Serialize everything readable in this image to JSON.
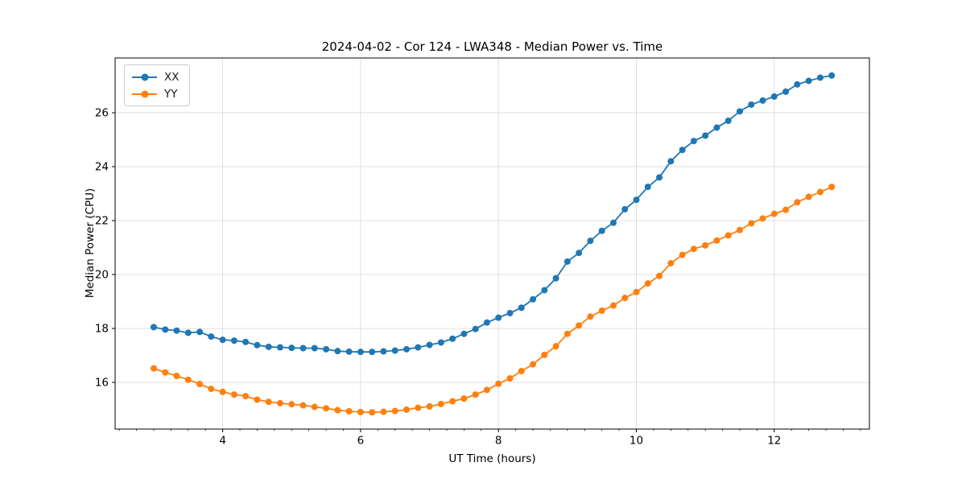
{
  "figure": {
    "background": "#ffffff",
    "text_color": "#000000",
    "grid_color": "#dcdcdc",
    "spine_color": "#000000"
  },
  "chart_data": {
    "type": "line",
    "title": "2024-04-02 - Cor 124 - LWA348 - Median Power vs. Time",
    "xlabel": "UT Time (hours)",
    "ylabel": "Median Power (CPU)",
    "xlim": [
      2.44,
      13.38
    ],
    "ylim": [
      14.27,
      28.03
    ],
    "xticks": [
      4,
      6,
      8,
      10,
      12
    ],
    "yticks": [
      16,
      18,
      20,
      22,
      24,
      26
    ],
    "minor_xtick_step": 0.25,
    "grid": true,
    "legend_position": "upper left",
    "marker": "circle",
    "x": [
      3.0,
      3.167,
      3.333,
      3.5,
      3.667,
      3.833,
      4.0,
      4.167,
      4.333,
      4.5,
      4.667,
      4.833,
      5.0,
      5.167,
      5.333,
      5.5,
      5.667,
      5.833,
      6.0,
      6.167,
      6.333,
      6.5,
      6.667,
      6.833,
      7.0,
      7.167,
      7.333,
      7.5,
      7.667,
      7.833,
      8.0,
      8.167,
      8.333,
      8.5,
      8.667,
      8.833,
      9.0,
      9.167,
      9.333,
      9.5,
      9.667,
      9.833,
      10.0,
      10.167,
      10.333,
      10.5,
      10.667,
      10.833,
      11.0,
      11.167,
      11.333,
      11.5,
      11.667,
      11.833,
      12.0,
      12.167,
      12.333,
      12.5,
      12.667,
      12.833
    ],
    "series": [
      {
        "name": "XX",
        "color": "#1f77b4",
        "values": [
          18.05,
          17.96,
          17.92,
          17.84,
          17.87,
          17.7,
          17.58,
          17.55,
          17.5,
          17.38,
          17.32,
          17.3,
          17.28,
          17.27,
          17.27,
          17.23,
          17.16,
          17.14,
          17.13,
          17.13,
          17.15,
          17.18,
          17.23,
          17.3,
          17.39,
          17.48,
          17.62,
          17.8,
          17.98,
          18.22,
          18.4,
          18.57,
          18.77,
          19.08,
          19.42,
          19.86,
          20.48,
          20.8,
          21.25,
          21.62,
          21.92,
          22.42,
          22.77,
          23.25,
          23.6,
          24.2,
          24.62,
          24.95,
          25.15,
          25.45,
          25.7,
          26.05,
          26.3,
          26.45,
          26.6,
          26.78,
          27.05,
          27.18,
          27.3,
          27.38
        ]
      },
      {
        "name": "YY",
        "color": "#ff7f0e",
        "values": [
          16.52,
          16.37,
          16.24,
          16.1,
          15.94,
          15.76,
          15.65,
          15.55,
          15.49,
          15.36,
          15.28,
          15.23,
          15.19,
          15.15,
          15.09,
          15.04,
          14.97,
          14.93,
          14.9,
          14.89,
          14.91,
          14.94,
          14.99,
          15.06,
          15.11,
          15.2,
          15.3,
          15.4,
          15.55,
          15.72,
          15.95,
          16.15,
          16.42,
          16.67,
          17.02,
          17.34,
          17.8,
          18.11,
          18.44,
          18.66,
          18.85,
          19.13,
          19.35,
          19.67,
          19.95,
          20.42,
          20.73,
          20.95,
          21.08,
          21.26,
          21.45,
          21.65,
          21.9,
          22.08,
          22.25,
          22.4,
          22.68,
          22.88,
          23.06,
          23.25
        ]
      }
    ]
  }
}
